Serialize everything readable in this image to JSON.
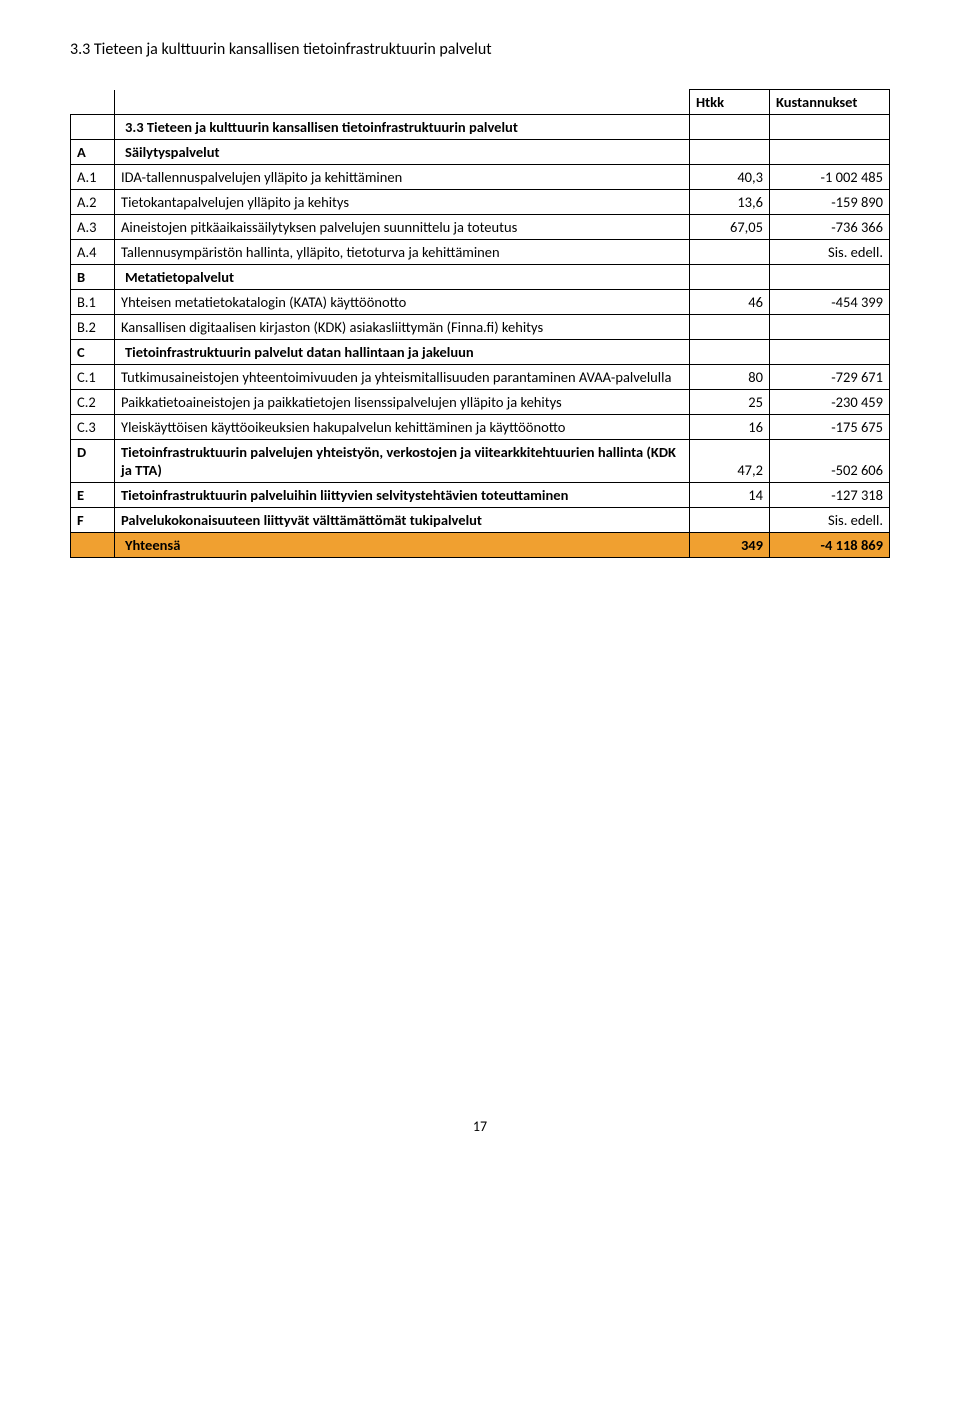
{
  "pageTitle": "3.3 Tieteen ja kulttuurin kansallisen tietoinfrastruktuurin palvelut",
  "headers": {
    "htkk": "Htkk",
    "kustannukset": "Kustannukset"
  },
  "sectionMain": {
    "label": "3.3 Tieteen ja kulttuurin kansallisen tietoinfrastruktuurin palvelut"
  },
  "rows": {
    "A": {
      "id": "A",
      "label": "Säilytyspalvelut"
    },
    "A1": {
      "id": "A.1",
      "label": "IDA-tallennuspalvelujen ylläpito ja kehittäminen",
      "htkk": "40,3",
      "kust": "-1 002 485"
    },
    "A2": {
      "id": "A.2",
      "label": "Tietokantapalvelujen ylläpito ja kehitys",
      "htkk": "13,6",
      "kust": "-159 890"
    },
    "A3": {
      "id": "A.3",
      "label": "Aineistojen pitkäaikaissäilytyksen palvelujen suunnittelu ja toteutus",
      "htkk": "67,05",
      "kust": "-736 366"
    },
    "A4": {
      "id": "A.4",
      "label": "Tallennusympäristön hallinta, ylläpito, tietoturva ja kehittäminen",
      "kust": "Sis. edell."
    },
    "B": {
      "id": "B",
      "label": "Metatietopalvelut"
    },
    "B1": {
      "id": "B.1",
      "label": "Yhteisen metatietokatalogin (KATA) käyttöönotto",
      "htkk": "46",
      "kust": "-454 399"
    },
    "B2": {
      "id": "B.2",
      "label": "Kansallisen digitaalisen kirjaston (KDK) asiakasliittymän (Finna.fi) kehitys"
    },
    "C": {
      "id": "C",
      "label": "Tietoinfrastruktuurin palvelut datan hallintaan ja jakeluun"
    },
    "C1": {
      "id": "C.1",
      "label": "Tutkimusaineistojen yhteentoimivuuden ja yhteismitallisuuden parantaminen AVAA-palvelulla",
      "htkk": "80",
      "kust": "-729 671"
    },
    "C2": {
      "id": "C.2",
      "label": "Paikkatietoaineistojen ja paikkatietojen lisenssipalvelujen ylläpito ja kehitys",
      "htkk": "25",
      "kust": "-230 459"
    },
    "C3": {
      "id": "C.3",
      "label": "Yleiskäyttöisen käyttöoikeuksien hakupalvelun kehittäminen ja käyttöönotto",
      "htkk": "16",
      "kust": "-175 675"
    },
    "D": {
      "id": "D",
      "label": "Tietoinfrastruktuurin palvelujen yhteistyön, verkostojen ja viitearkkitehtuurien hallinta (KDK ja TTA)",
      "htkk": "47,2",
      "kust": "-502 606"
    },
    "E": {
      "id": "E",
      "label": "Tietoinfrastruktuurin palveluihin liittyvien selvitystehtävien toteuttaminen",
      "htkk": "14",
      "kust": "-127 318"
    },
    "F": {
      "id": "F",
      "label": "Palvelukokonaisuuteen liittyvät välttämättömät tukipalvelut",
      "kust": "Sis. edell."
    }
  },
  "total": {
    "label": "Yhteensä",
    "htkk": "349",
    "kust": "-4 118 869"
  },
  "pageNumber": "17",
  "styling": {
    "background_color": "#ffffff",
    "border_color": "#000000",
    "orange_bg": "#f0a030",
    "font_family": "Calibri, Arial, sans-serif",
    "body_fontsize": 14.5,
    "title_fontsize": 16
  }
}
